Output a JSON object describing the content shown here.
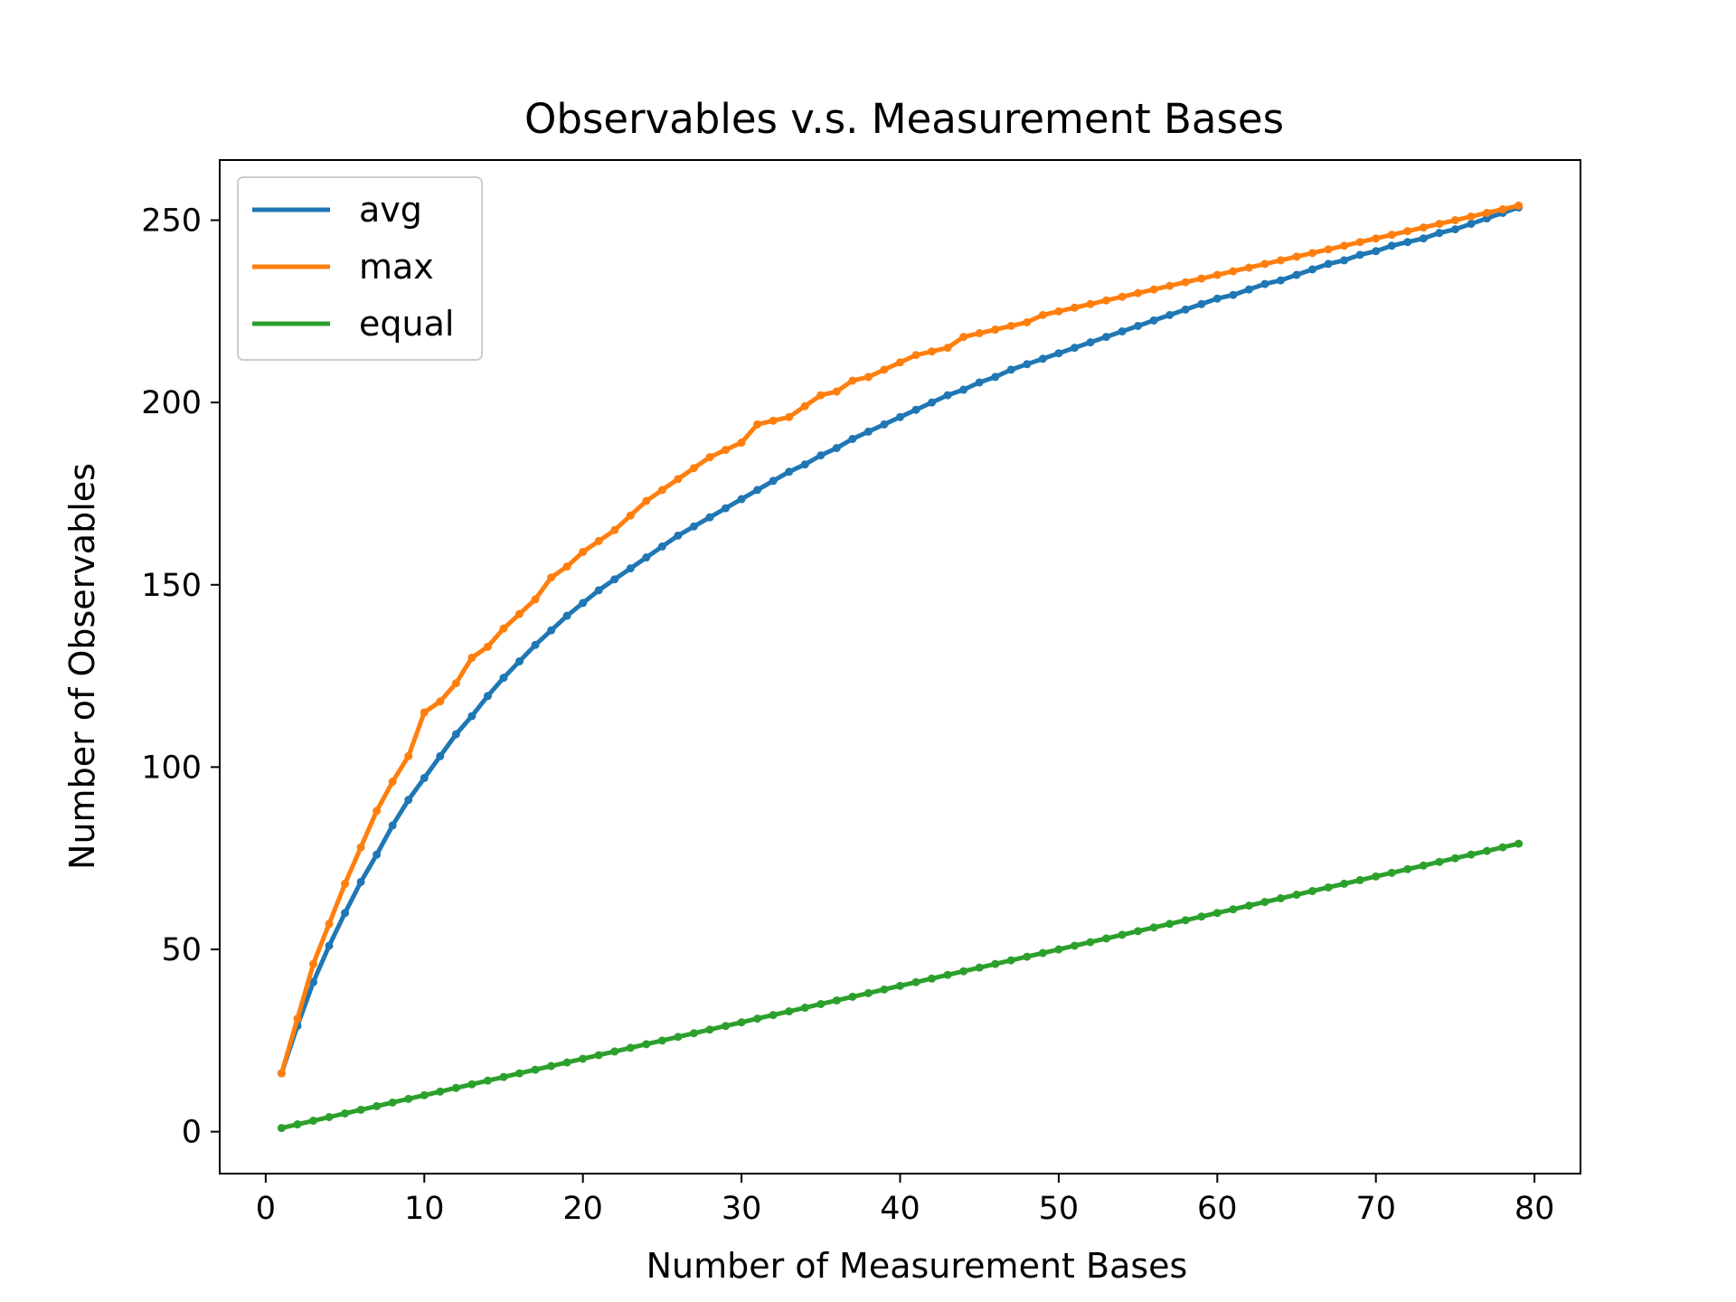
{
  "chart_data": {
    "type": "line",
    "title": "Observables v.s. Measurement Bases",
    "xlabel": "Number of Measurement Bases",
    "ylabel": "Number of Observables",
    "xlim": [
      -2.9,
      82.9
    ],
    "ylim": [
      -11.5,
      266.5
    ],
    "xticks": [
      0,
      10,
      20,
      30,
      40,
      50,
      60,
      70,
      80
    ],
    "yticks": [
      0,
      50,
      100,
      150,
      200,
      250
    ],
    "grid": false,
    "legend_position": "top-left",
    "x": [
      1,
      2,
      3,
      4,
      5,
      6,
      7,
      8,
      9,
      10,
      11,
      12,
      13,
      14,
      15,
      16,
      17,
      18,
      19,
      20,
      21,
      22,
      23,
      24,
      25,
      26,
      27,
      28,
      29,
      30,
      31,
      32,
      33,
      34,
      35,
      36,
      37,
      38,
      39,
      40,
      41,
      42,
      43,
      44,
      45,
      46,
      47,
      48,
      49,
      50,
      51,
      52,
      53,
      54,
      55,
      56,
      57,
      58,
      59,
      60,
      61,
      62,
      63,
      64,
      65,
      66,
      67,
      68,
      69,
      70,
      71,
      72,
      73,
      74,
      75,
      76,
      77,
      78,
      79
    ],
    "series": [
      {
        "name": "avg",
        "color": "#1f77b4",
        "values": [
          16,
          29,
          41,
          51,
          60,
          68.5,
          76,
          84,
          91,
          97,
          103,
          109,
          114,
          119.5,
          124.5,
          129,
          133.5,
          137.5,
          141.5,
          145,
          148.5,
          151.5,
          154.5,
          157.5,
          160.5,
          163.5,
          166,
          168.5,
          171,
          173.5,
          176,
          178.5,
          181,
          183,
          185.5,
          187.5,
          190,
          192,
          194,
          196,
          198,
          200,
          202,
          203.5,
          205.5,
          207,
          209,
          210.5,
          212,
          213.5,
          215,
          216.5,
          218,
          219.5,
          221,
          222.5,
          224,
          225.5,
          227,
          228.5,
          229.5,
          231,
          232.5,
          233.5,
          235,
          236.5,
          238,
          239,
          240.5,
          241.5,
          243,
          244,
          245,
          246.5,
          247.5,
          249,
          250.5,
          252,
          253.5
        ]
      },
      {
        "name": "max",
        "color": "#ff7f0e",
        "values": [
          16,
          31,
          46,
          57,
          68,
          78,
          88,
          96,
          103,
          115,
          118,
          123,
          130,
          133,
          138,
          142,
          146,
          152,
          155,
          159,
          162,
          165,
          169,
          173,
          176,
          179,
          182,
          185,
          187,
          189,
          194,
          195,
          196,
          199,
          202,
          203,
          206,
          207,
          209,
          211,
          213,
          214,
          215,
          218,
          219,
          220,
          221,
          222,
          224,
          225,
          226,
          227,
          228,
          229,
          230,
          231,
          232,
          233,
          234,
          235,
          236,
          237,
          238,
          239,
          240,
          241,
          242,
          243,
          244,
          245,
          246,
          247,
          248,
          249,
          250,
          251,
          252,
          253,
          254
        ]
      },
      {
        "name": "equal",
        "color": "#2ca02c",
        "values": [
          1,
          2,
          3,
          4,
          5,
          6,
          7,
          8,
          9,
          10,
          11,
          12,
          13,
          14,
          15,
          16,
          17,
          18,
          19,
          20,
          21,
          22,
          23,
          24,
          25,
          26,
          27,
          28,
          29,
          30,
          31,
          32,
          33,
          34,
          35,
          36,
          37,
          38,
          39,
          40,
          41,
          42,
          43,
          44,
          45,
          46,
          47,
          48,
          49,
          50,
          51,
          52,
          53,
          54,
          55,
          56,
          57,
          58,
          59,
          60,
          61,
          62,
          63,
          64,
          65,
          66,
          67,
          68,
          69,
          70,
          71,
          72,
          73,
          74,
          75,
          76,
          77,
          78,
          79
        ]
      }
    ]
  }
}
